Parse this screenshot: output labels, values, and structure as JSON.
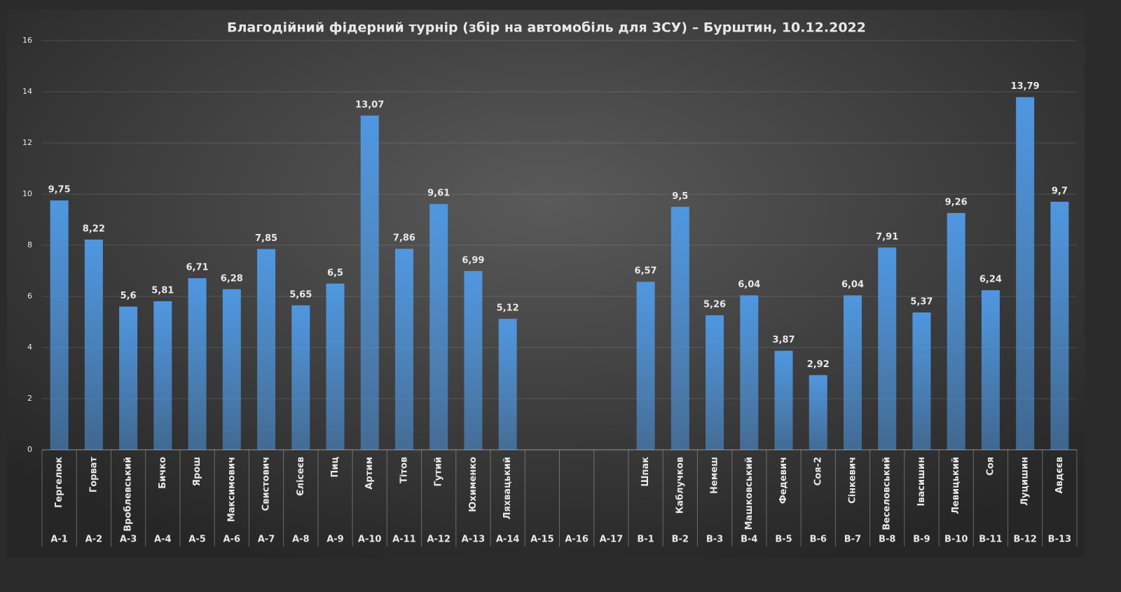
{
  "chart_data": {
    "type": "bar",
    "title": "Благодійний фідерний турнір (збір на автомобіль для ЗСУ) – Бурштин, 10.12.2022",
    "categories": [
      "А-1",
      "А-2",
      "А-3",
      "А-4",
      "А-5",
      "А-6",
      "А-7",
      "А-8",
      "А-9",
      "А-10",
      "А-11",
      "А-12",
      "А-13",
      "А-14",
      "А-15",
      "А-16",
      "А-17",
      "В-1",
      "В-2",
      "В-3",
      "В-4",
      "В-5",
      "В-6",
      "В-7",
      "В-8",
      "В-9",
      "В-10",
      "В-11",
      "В-12",
      "В-13"
    ],
    "names": [
      "Гергелюк",
      "Горват",
      "Вроблевський",
      "Бичко",
      "Ярош",
      "Максимович",
      "Свистович",
      "Єлісеєв",
      "Пиц",
      "Артим",
      "Тітов",
      "Гутий",
      "Юхименко",
      "Ляхвацький",
      null,
      null,
      null,
      "Шпак",
      "Каблучков",
      "Немеш",
      "Машковський",
      "Федевич",
      "Соя-2",
      "Сінкевич",
      "Веселовський",
      "Івасишин",
      "Левицький",
      "Соя",
      "Луцишин",
      "Авдєєв"
    ],
    "values": [
      9.75,
      8.22,
      5.6,
      5.81,
      6.71,
      6.28,
      7.85,
      5.65,
      6.5,
      13.07,
      7.86,
      9.61,
      6.99,
      5.12,
      null,
      null,
      null,
      6.57,
      9.5,
      5.26,
      6.04,
      3.87,
      2.92,
      6.04,
      7.91,
      5.37,
      9.26,
      6.24,
      13.79,
      9.7
    ],
    "value_labels": [
      "9,75",
      "8,22",
      "5,6",
      "5,81",
      "6,71",
      "6,28",
      "7,85",
      "5,65",
      "6,5",
      "13,07",
      "7,86",
      "9,61",
      "6,99",
      "5,12",
      null,
      null,
      null,
      "6,57",
      "9,5",
      "5,26",
      "6,04",
      "3,87",
      "2,92",
      "6,04",
      "7,91",
      "5,37",
      "9,26",
      "6,24",
      "13,79",
      "9,7"
    ],
    "color": "#4f97e0",
    "ylim": [
      0,
      16
    ],
    "yticks": [
      0,
      2,
      4,
      6,
      8,
      10,
      12,
      14,
      16
    ],
    "grid": true
  }
}
